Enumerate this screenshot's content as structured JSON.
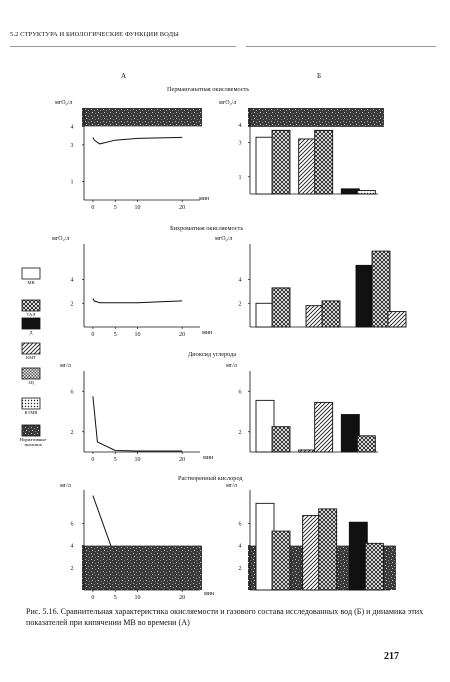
{
  "page": {
    "header": "5.2 СТРУКТУРА И БИОЛОГИЧЕСКИЕ ФУНКЦИИ ВОДЫ",
    "column_a": "А",
    "column_b": "Б",
    "caption": "Рис. 5.16. Сравнительная характеристика окисляемости и газового состава исследованных вод (Б) и динамика этих показателей при кипячении МВ во времени (А)",
    "page_number": "217"
  },
  "legend": [
    {
      "key": "mv",
      "label": "МВ",
      "pattern": "white"
    },
    {
      "key": "tal",
      "label": "ТАЛ",
      "pattern": "crosshatch"
    },
    {
      "key": "d",
      "label": "Д",
      "pattern": "black"
    },
    {
      "key": "kmv",
      "label": "КМТ",
      "pattern": "diagonal"
    },
    {
      "key": "zu",
      "label": "ЗЦ",
      "pattern": "dense"
    },
    {
      "key": "ktmv",
      "label": "КТМВ",
      "pattern": "fine"
    },
    {
      "key": "norm",
      "label": "Нормативные значения",
      "pattern": "noise"
    }
  ],
  "colors": {
    "bar_outline": "#111111",
    "norm_band": "#2b2b2b",
    "line": "#111111"
  },
  "chart_data": [
    {
      "section_title": "Перманганатная окисляемость",
      "type": "line",
      "panel": "A",
      "ylabel": "мгО₂/л",
      "xlabel": "мин",
      "x_ticks": [
        "0",
        "5",
        "10",
        "20"
      ],
      "y_ticks": [
        "1",
        "3",
        "4"
      ],
      "ylim": [
        0,
        5
      ],
      "xlim": [
        -2,
        24
      ],
      "x": [
        0,
        0.3,
        1.5,
        5,
        10,
        20
      ],
      "y": [
        3.4,
        3.25,
        3.05,
        3.25,
        3.35,
        3.4
      ],
      "norm_band": [
        4,
        5
      ]
    },
    {
      "type": "bar",
      "panel": "B",
      "ylabel": "мгО₂/л",
      "y_ticks": [
        "1",
        "3",
        "4"
      ],
      "ylim": [
        0,
        5
      ],
      "norm_band": [
        3.9,
        5
      ],
      "groups": [
        {
          "bars": [
            {
              "series": "mv",
              "value": 3.3
            },
            {
              "series": "tal",
              "value": 3.7
            }
          ]
        },
        {
          "bars": [
            {
              "series": "kmv",
              "value": 3.2
            },
            {
              "series": "tal",
              "value": 3.7
            }
          ]
        },
        {
          "bars": [
            {
              "series": "d",
              "value": 0.3
            },
            {
              "series": "fine_d",
              "value": 0.2
            }
          ]
        }
      ]
    },
    {
      "section_title": "Бихроматная окисляемость",
      "type": "line",
      "panel": "A",
      "ylabel": "мгО₂/л",
      "xlabel": "мин",
      "x_ticks": [
        "0",
        "5",
        "10",
        "20"
      ],
      "y_ticks": [
        "2",
        "4"
      ],
      "ylim": [
        0,
        7
      ],
      "xlim": [
        -2,
        24
      ],
      "x": [
        0,
        0.3,
        1.5,
        5,
        10,
        20
      ],
      "y": [
        2.4,
        2.2,
        2.05,
        2.05,
        2.05,
        2.2
      ]
    },
    {
      "type": "bar",
      "panel": "B",
      "ylabel": "мгО₂/л",
      "y_ticks": [
        "2",
        "4"
      ],
      "ylim": [
        0,
        7
      ],
      "groups": [
        {
          "bars": [
            {
              "series": "mv",
              "value": 2.0
            },
            {
              "series": "tal",
              "value": 3.3
            }
          ]
        },
        {
          "bars": [
            {
              "series": "kmv",
              "value": 1.8
            },
            {
              "series": "tal",
              "value": 2.2
            }
          ]
        },
        {
          "bars": [
            {
              "series": "d",
              "value": 5.2
            },
            {
              "series": "tal",
              "value": 6.4
            },
            {
              "series": "kmv",
              "value": 1.3
            }
          ]
        }
      ]
    },
    {
      "section_title": "Диоксид углерода",
      "type": "line",
      "panel": "A",
      "ylabel": "мг/л",
      "xlabel": "мин",
      "x_ticks": [
        "0",
        "5",
        "10",
        "20"
      ],
      "y_ticks": [
        "2",
        "6"
      ],
      "ylim": [
        0,
        8
      ],
      "xlim": [
        -2,
        24
      ],
      "x": [
        0,
        1,
        5,
        10,
        20
      ],
      "y": [
        5.5,
        1.0,
        0.15,
        0.1,
        0.1
      ]
    },
    {
      "type": "bar",
      "panel": "B",
      "ylabel": "мг/л",
      "y_ticks": [
        "2",
        "6"
      ],
      "ylim": [
        0,
        8
      ],
      "groups": [
        {
          "bars": [
            {
              "series": "mv",
              "value": 5.1
            },
            {
              "series": "tal",
              "value": 2.5
            }
          ]
        },
        {
          "bars": [
            {
              "series": "kmv_low",
              "value": 0.2
            },
            {
              "series": "kmv",
              "value": 4.9
            }
          ]
        },
        {
          "bars": [
            {
              "series": "d",
              "value": 3.7
            },
            {
              "series": "tal",
              "value": 1.6
            }
          ]
        }
      ]
    },
    {
      "section_title": "Растворенный кислород",
      "type": "line",
      "panel": "A",
      "ylabel": "мг/л",
      "xlabel": "мин",
      "x_ticks": [
        "0",
        "5",
        "10",
        "20"
      ],
      "y_ticks": [
        "2",
        "4",
        "6"
      ],
      "ylim": [
        0,
        9
      ],
      "xlim": [
        -2,
        24
      ],
      "x": [
        0,
        4
      ],
      "y": [
        8.5,
        4.0
      ],
      "norm_band": [
        0,
        4
      ]
    },
    {
      "type": "bar",
      "panel": "B",
      "ylabel": "мг/л",
      "y_ticks": [
        "2",
        "4",
        "6"
      ],
      "ylim": [
        0,
        9
      ],
      "norm_band": [
        0,
        4
      ],
      "groups": [
        {
          "bars": [
            {
              "series": "mv",
              "value": 7.8
            },
            {
              "series": "tal",
              "value": 5.3
            }
          ]
        },
        {
          "bars": [
            {
              "series": "kmv",
              "value": 6.7
            },
            {
              "series": "tal",
              "value": 7.3
            }
          ]
        },
        {
          "bars": [
            {
              "series": "d",
              "value": 6.1
            },
            {
              "series": "tal",
              "value": 4.2
            }
          ]
        }
      ]
    }
  ]
}
